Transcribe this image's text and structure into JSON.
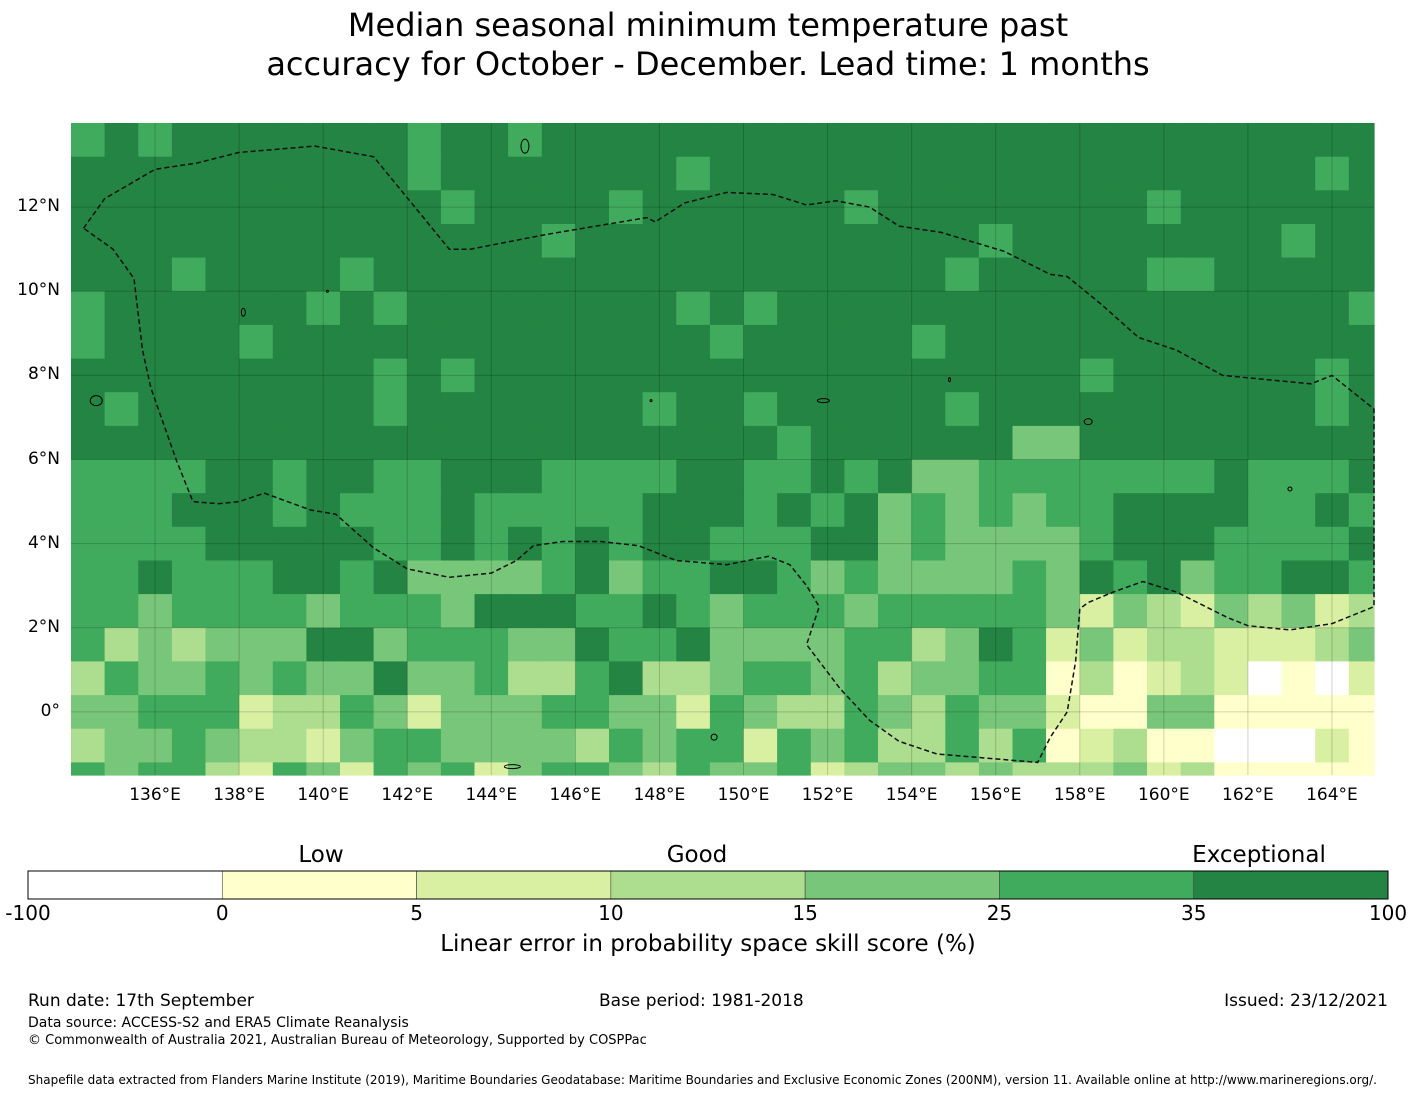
{
  "title": {
    "line1": "Median seasonal minimum temperature past",
    "line2": "accuracy for October - December. Lead time: 1 months"
  },
  "map": {
    "lat_labels": [
      "12°N",
      "10°N",
      "8°N",
      "6°N",
      "4°N",
      "2°N",
      "0°"
    ],
    "lon_labels": [
      "136°E",
      "138°E",
      "140°E",
      "142°E",
      "144°E",
      "146°E",
      "148°E",
      "150°E",
      "152°E",
      "154°E",
      "156°E",
      "158°E",
      "160°E",
      "162°E",
      "164°E"
    ],
    "lon_range": [
      134.0,
      165.0
    ],
    "lat_range": [
      -1.5,
      14.0
    ],
    "boundary": "dashed EEZ outline",
    "palette": [
      "#ffffff",
      "#ffffcc",
      "#d9f0a3",
      "#addd8e",
      "#78c679",
      "#41ab5d",
      "#238443"
    ]
  },
  "colorbar": {
    "categories": [
      "Low",
      "Good",
      "Exceptional"
    ],
    "ticks": [
      "-100",
      "0",
      "5",
      "10",
      "15",
      "25",
      "35",
      "100"
    ],
    "colors": [
      "#ffffff",
      "#ffffcc",
      "#d9f0a3",
      "#addd8e",
      "#78c679",
      "#41ab5d",
      "#238443"
    ],
    "label": "Linear error in probability space skill score (%)"
  },
  "footer": {
    "run_date": "Run date: 17th September",
    "base_period": "Base period: 1981-2018",
    "issued": "Issued: 23/12/2021",
    "data_source": "Data source: ACCESS-S2 and ERA5 Climate Reanalysis",
    "copyright": "© Commonwealth of Australia 2021, Australian Bureau of Meteorology, Supported by COSPPac",
    "shapefile": "Shapefile data extracted from Flanders Marine Institute (2019), Maritime Boundaries Geodatabase: Maritime Boundaries and Exclusive Economic Zones (200NM), version 11. Available online at http://www.marineregions.org/."
  }
}
